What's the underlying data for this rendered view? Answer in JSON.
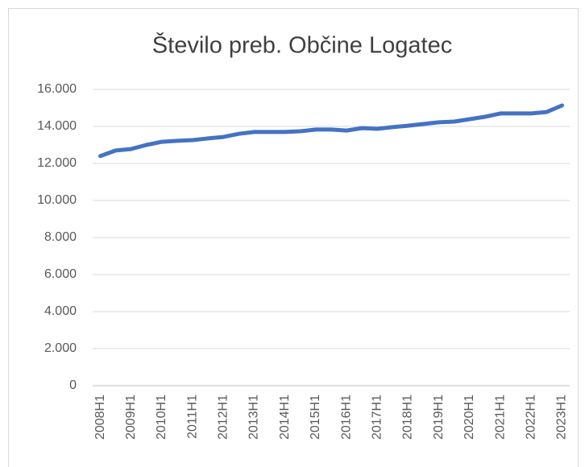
{
  "chart_data": {
    "type": "line",
    "title": "Število preb. Občine Logatec",
    "categories": [
      "2008H1",
      null,
      "2009H1",
      null,
      "2010H1",
      null,
      "2011H1",
      null,
      "2012H1",
      null,
      "2013H1",
      null,
      "2014H1",
      null,
      "2015H1",
      null,
      "2016H1",
      null,
      "2017H1",
      null,
      "2018H1",
      null,
      "2019H1",
      null,
      "2020H1",
      null,
      "2021H1",
      null,
      "2022H1",
      null,
      "2023H1"
    ],
    "series": [
      {
        "name": "Število preb.",
        "color": "#4472c4",
        "values": [
          12400,
          12700,
          12780,
          13000,
          13170,
          13220,
          13260,
          13350,
          13430,
          13600,
          13700,
          13700,
          13700,
          13740,
          13830,
          13830,
          13780,
          13910,
          13870,
          13960,
          14040,
          14130,
          14220,
          14260,
          14390,
          14520,
          14700,
          14700,
          14700,
          14780,
          15130
        ]
      }
    ],
    "ylim": [
      0,
      16000
    ],
    "yticks": [
      0,
      {
        "value": 2000,
        "label": "2.000"
      },
      {
        "value": 4000,
        "label": "4.000"
      },
      {
        "value": 6000,
        "label": "6.000"
      },
      {
        "value": 8000,
        "label": "8.000"
      },
      {
        "value": 10000,
        "label": "10.000"
      },
      {
        "value": 12000,
        "label": "12.000"
      },
      {
        "value": 14000,
        "label": "14.000"
      },
      {
        "value": 16000,
        "label": "16.000"
      }
    ],
    "grid": true
  }
}
